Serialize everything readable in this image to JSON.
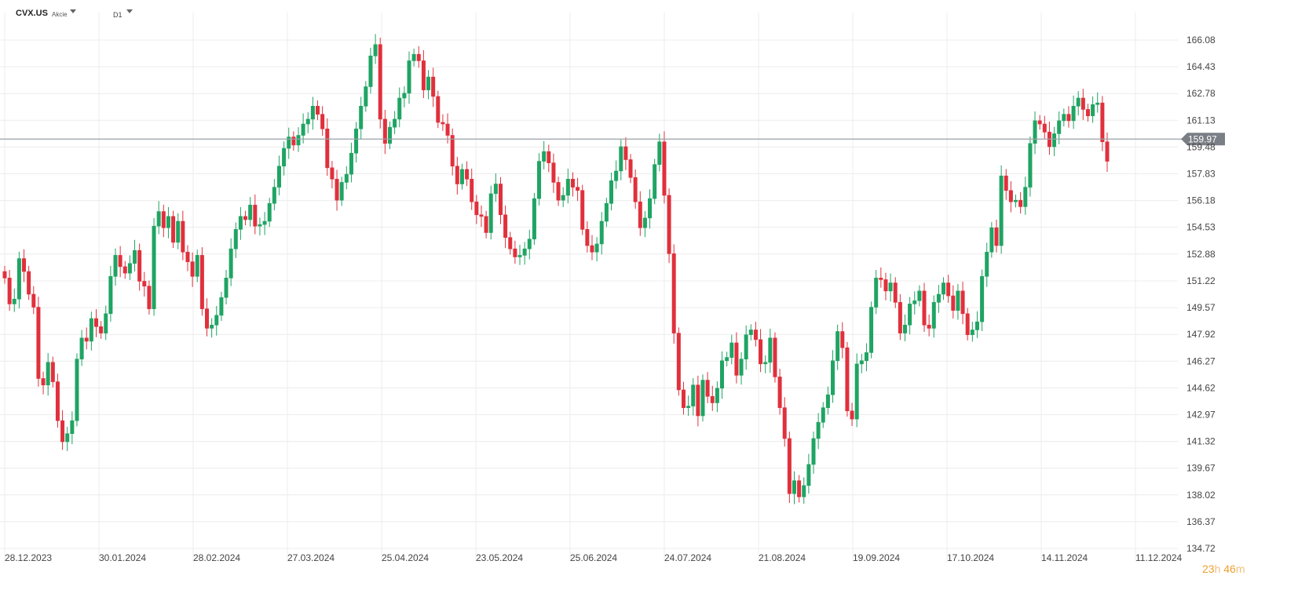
{
  "header": {
    "symbol": "CVX.US",
    "instrument_type": "Akcie",
    "timeframe": "D1"
  },
  "countdown": {
    "hours": "23",
    "h_unit": "h",
    "minutes": "46",
    "m_unit": "m"
  },
  "colors": {
    "up": "#1fa463",
    "down": "#e0303c",
    "grid": "#ececec",
    "current_line": "#9aa0a6",
    "tag_bg": "#7a7f86",
    "countdown": "#f0a030"
  },
  "chart_data": {
    "type": "candlestick",
    "title": "",
    "xlabel": "",
    "ylabel": "",
    "ylim": [
      134.6,
      167.2
    ],
    "y_ticks": [
      "166.08",
      "164.43",
      "162.78",
      "161.13",
      "159.48",
      "157.83",
      "156.18",
      "154.53",
      "152.88",
      "151.22",
      "149.57",
      "147.92",
      "146.27",
      "144.62",
      "142.97",
      "141.32",
      "139.67",
      "138.02",
      "136.37",
      "134.72"
    ],
    "x_ticks": [
      "28.12.2023",
      "30.01.2024",
      "28.02.2024",
      "27.03.2024",
      "25.04.2024",
      "23.05.2024",
      "25.06.2024",
      "24.07.2024",
      "21.08.2024",
      "19.09.2024",
      "17.10.2024",
      "14.11.2024",
      "11.12.2024"
    ],
    "current_price": "159.97",
    "grid": true,
    "closes": [
      151.4,
      149.8,
      150.1,
      152.6,
      151.8,
      150.4,
      149.6,
      145.2,
      144.8,
      146.2,
      145.0,
      142.6,
      141.3,
      141.8,
      142.6,
      146.4,
      147.7,
      147.5,
      148.9,
      148.4,
      148.0,
      149.2,
      151.5,
      152.8,
      152.1,
      151.7,
      152.3,
      153.1,
      151.2,
      150.9,
      149.5,
      154.6,
      155.5,
      154.5,
      155.2,
      153.6,
      154.9,
      153.0,
      152.4,
      151.5,
      152.8,
      149.5,
      148.3,
      148.5,
      149.1,
      150.2,
      151.4,
      153.2,
      154.4,
      155.2,
      155.0,
      155.9,
      154.6,
      154.7,
      154.9,
      156.0,
      157.0,
      158.3,
      159.4,
      160.1,
      159.6,
      160.2,
      160.9,
      161.2,
      162.0,
      161.5,
      160.6,
      158.2,
      157.5,
      156.2,
      157.3,
      157.8,
      159.1,
      160.6,
      162.0,
      163.2,
      165.1,
      165.8,
      161.2,
      159.7,
      160.7,
      161.2,
      162.5,
      162.8,
      164.8,
      165.2,
      164.8,
      163.0,
      163.8,
      162.6,
      161.0,
      160.9,
      160.2,
      158.3,
      157.2,
      158.1,
      157.5,
      156.1,
      155.3,
      155.2,
      154.2,
      156.6,
      157.2,
      155.3,
      153.9,
      153.2,
      152.7,
      152.8,
      153.2,
      153.8,
      156.3,
      158.6,
      159.2,
      158.5,
      157.3,
      156.2,
      156.5,
      157.5,
      157.0,
      156.8,
      154.4,
      153.4,
      153.0,
      153.5,
      154.9,
      156.0,
      157.4,
      158.0,
      159.5,
      158.7,
      157.6,
      156.1,
      154.5,
      155.1,
      156.3,
      158.4,
      159.8,
      156.5,
      152.9,
      148.0,
      144.5,
      143.4,
      143.5,
      144.8,
      142.9,
      145.1,
      144.1,
      143.7,
      144.6,
      146.3,
      146.5,
      147.4,
      145.4,
      146.4,
      147.9,
      148.2,
      147.6,
      146.1,
      146.2,
      147.7,
      145.3,
      143.4,
      141.5,
      138.1,
      138.9,
      137.9,
      138.6,
      139.9,
      141.5,
      142.5,
      143.4,
      144.2,
      146.3,
      148.1,
      147.1,
      143.2,
      142.7,
      146.1,
      146.3,
      146.8,
      149.6,
      151.4,
      151.3,
      150.6,
      151.1,
      149.9,
      148.0,
      148.5,
      149.8,
      150.0,
      150.6,
      148.5,
      148.3,
      149.9,
      150.4,
      151.1,
      150.3,
      149.4,
      150.6,
      149.2,
      147.9,
      148.2,
      148.7,
      151.5,
      153.0,
      154.5,
      153.4,
      157.7,
      156.8,
      156.1,
      156.2,
      155.8,
      157.0,
      159.7,
      161.1,
      160.9,
      160.4,
      159.5,
      160.3,
      161.1,
      161.5,
      161.1,
      162.0,
      162.5,
      161.8,
      161.4,
      162.1,
      162.2,
      159.8,
      158.6
    ]
  }
}
